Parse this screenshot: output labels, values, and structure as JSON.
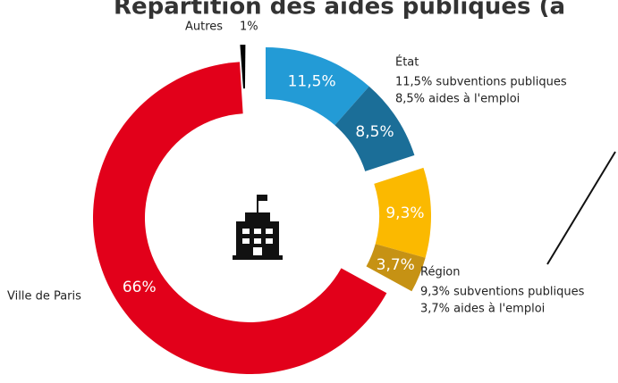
{
  "chart_data": {
    "type": "donut",
    "title": "Répartition des aides publiques (a",
    "values": [
      11.5,
      8.5,
      9.3,
      3.7,
      66,
      1
    ],
    "value_labels": [
      "11,5%",
      "8,5%",
      "9,3%",
      "3,7%",
      "66%",
      "1%"
    ],
    "colors": [
      "#239bd6",
      "#1b6e98",
      "#fbb900",
      "#c69214",
      "#e2001a",
      "#000000"
    ],
    "groups": [
      {
        "name": "État",
        "notes": [
          "11,5% subventions publiques",
          "8,5% aides à l'emploi"
        ]
      },
      {
        "name": "Région",
        "notes": [
          "9,3% subventions publiques",
          "3,7% aides à l'emploi"
        ]
      },
      {
        "name": "Ville de Paris"
      },
      {
        "name": "Autres"
      }
    ]
  }
}
